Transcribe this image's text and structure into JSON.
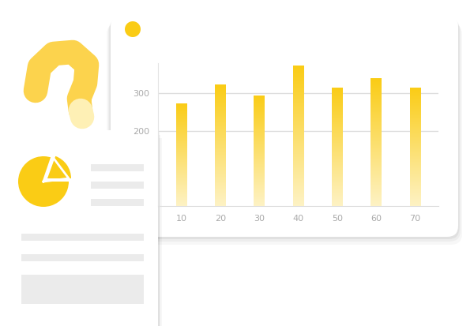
{
  "chart_data": {
    "type": "bar",
    "x": [
      10,
      20,
      30,
      40,
      50,
      60,
      70
    ],
    "values": [
      273,
      323,
      294,
      373,
      315,
      340,
      315
    ],
    "color": "#FACC15",
    "xlim": [
      4,
      76
    ],
    "xticks": [
      10,
      20,
      30,
      40,
      50,
      60,
      70
    ],
    "ylim": [
      0,
      380
    ],
    "yticks": [
      200,
      300
    ],
    "grid": true
  }
}
